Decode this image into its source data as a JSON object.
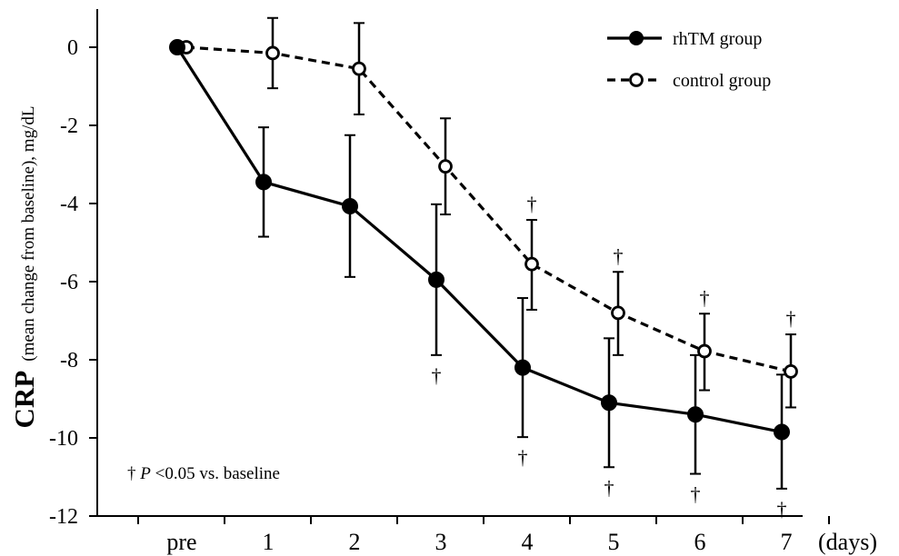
{
  "chart_data": {
    "type": "line",
    "categories": [
      "pre",
      "1",
      "2",
      "3",
      "4",
      "5",
      "6",
      "7"
    ],
    "x_unit_label": "(days)",
    "ylabel_main": "CRP",
    "ylabel_sub": "(mean change from baseline), mg/dL",
    "ylim": [
      -12,
      0
    ],
    "yticks": [
      "0",
      "-2",
      "-4",
      "-6",
      "-8",
      "-10",
      "-12"
    ],
    "grid": false,
    "legend_position": "top-right",
    "series": [
      {
        "name": "rhTM group",
        "style": "solid",
        "marker": "filled-circle",
        "color": "#000000",
        "values": [
          0,
          -3.45,
          -4.07,
          -5.95,
          -8.2,
          -9.1,
          -9.4,
          -9.85
        ],
        "error_low": [
          0,
          -4.85,
          -5.88,
          -7.88,
          -9.98,
          -10.75,
          -10.92,
          -11.3
        ],
        "error_high": [
          0,
          -2.05,
          -2.25,
          -4.02,
          -6.42,
          -7.45,
          -7.88,
          -8.38
        ],
        "significance": [
          false,
          false,
          false,
          true,
          true,
          true,
          true,
          true
        ]
      },
      {
        "name": "control group",
        "style": "dashed",
        "marker": "open-circle",
        "color": "#000000",
        "values": [
          0,
          -0.15,
          -0.55,
          -3.05,
          -5.55,
          -6.8,
          -7.78,
          -8.3
        ],
        "error_low": [
          0,
          -1.05,
          -1.72,
          -4.28,
          -6.72,
          -7.88,
          -8.78,
          -9.22
        ],
        "error_high": [
          0,
          0.75,
          0.62,
          -1.82,
          -4.42,
          -5.75,
          -6.82,
          -7.35
        ],
        "significance": [
          false,
          false,
          false,
          false,
          true,
          true,
          true,
          true
        ]
      }
    ],
    "significance_symbol": "†",
    "footnote": {
      "symbol": "†",
      "p_letter": "P",
      "rest": " <0.05 vs. baseline"
    }
  }
}
